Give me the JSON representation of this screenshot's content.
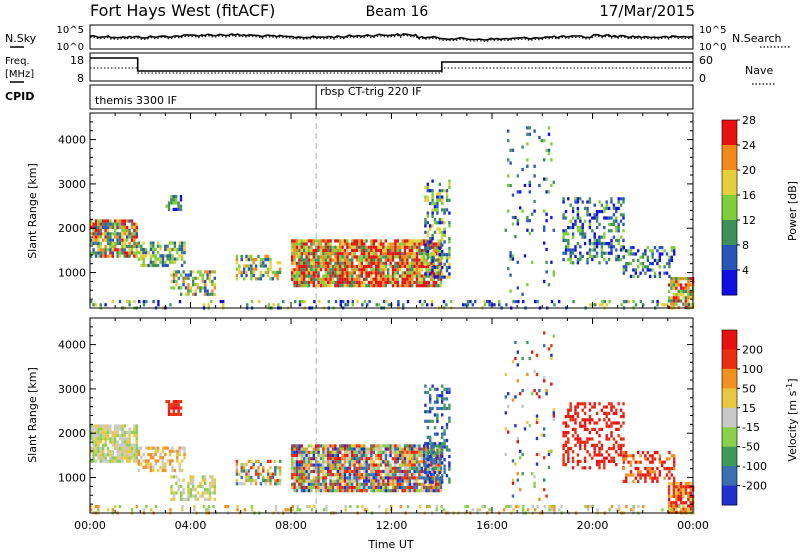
{
  "header": {
    "station": "Fort Hays West (fitACF)",
    "beam": "Beam 16",
    "date": "17/Mar/2015"
  },
  "top_panel": {
    "left_label": "N.Sky",
    "right_label": "N.Search",
    "left_ticks": [
      "10^5",
      "10^0"
    ],
    "right_ticks": [
      "10^5",
      "10^0"
    ]
  },
  "freq_panel": {
    "left_label_1": "Freq.",
    "left_label_2": "[MHz]",
    "left_ticks": [
      "18",
      "8"
    ],
    "right_label": "Nave",
    "right_ticks": [
      "60",
      "0"
    ]
  },
  "cpid_panel": {
    "label": "CPID",
    "programs": [
      {
        "name": "themis 3300 IF",
        "start_hour": 0
      },
      {
        "name": "rbsp CT-trig 220 IF",
        "start_hour": 9
      }
    ]
  },
  "chart_data": [
    {
      "type": "heatmap",
      "name": "power",
      "xlabel": "",
      "ylabel": "Slant Range [km]",
      "xlim": [
        0,
        24
      ],
      "ylim": [
        200,
        4600
      ],
      "yticks": [
        "1000",
        "2000",
        "3000",
        "4000"
      ],
      "colorbar_label": "Power [dB]",
      "colorbar_ticks": [
        "4",
        "8",
        "12",
        "16",
        "20",
        "24",
        "28"
      ],
      "colorbar_colors": [
        "#1010e0",
        "#2a55b8",
        "#3f8f5a",
        "#7fcf3a",
        "#e6d03a",
        "#f28a1a",
        "#e81010"
      ],
      "clusters": [
        {
          "t": [
            0.0,
            1.9
          ],
          "r": [
            1350,
            2200
          ],
          "dens": 0.82,
          "cmin": 1,
          "cmax": 6
        },
        {
          "t": [
            1.9,
            3.8
          ],
          "r": [
            1150,
            1700
          ],
          "dens": 0.55,
          "cmin": 1,
          "cmax": 4
        },
        {
          "t": [
            3.0,
            3.6
          ],
          "r": [
            2450,
            2750
          ],
          "dens": 0.65,
          "cmin": 0,
          "cmax": 3
        },
        {
          "t": [
            3.2,
            5.0
          ],
          "r": [
            520,
            1050
          ],
          "dens": 0.55,
          "cmin": 1,
          "cmax": 5
        },
        {
          "t": [
            5.8,
            7.6
          ],
          "r": [
            850,
            1400
          ],
          "dens": 0.55,
          "cmin": 1,
          "cmax": 5
        },
        {
          "t": [
            8.0,
            14.0
          ],
          "r": [
            700,
            1750
          ],
          "dens": 0.88,
          "cmin": 2,
          "cmax": 7
        },
        {
          "t": [
            13.3,
            14.3
          ],
          "r": [
            900,
            3100
          ],
          "dens": 0.45,
          "cmin": 0,
          "cmax": 4
        },
        {
          "t": [
            18.8,
            21.2
          ],
          "r": [
            1200,
            2700
          ],
          "dens": 0.35,
          "cmin": 0,
          "cmax": 3
        },
        {
          "t": [
            21.2,
            23.3
          ],
          "r": [
            900,
            1600
          ],
          "dens": 0.45,
          "cmin": 0,
          "cmax": 3
        },
        {
          "t": [
            23.0,
            24.0
          ],
          "r": [
            220,
            900
          ],
          "dens": 0.85,
          "cmin": 2,
          "cmax": 7
        },
        {
          "t": [
            16.5,
            18.5
          ],
          "r": [
            500,
            4300
          ],
          "dens": 0.07,
          "cmin": 0,
          "cmax": 3
        },
        {
          "t": [
            0.0,
            24.0
          ],
          "r": [
            200,
            380
          ],
          "dens": 0.22,
          "cmin": 0,
          "cmax": 4
        }
      ]
    },
    {
      "type": "heatmap",
      "name": "velocity",
      "xlabel": "Time UT",
      "ylabel": "Slant Range [km]",
      "xlim": [
        0,
        24
      ],
      "ylim": [
        200,
        4600
      ],
      "xticks": [
        "00:00",
        "04:00",
        "08:00",
        "12:00",
        "16:00",
        "20:00",
        "00:00"
      ],
      "yticks": [
        "1000",
        "2000",
        "3000",
        "4000"
      ],
      "colorbar_label": "Velocity [m s",
      "colorbar_label_sup": "-1",
      "colorbar_ticks": [
        "200",
        "100",
        "50",
        "15",
        "-15",
        "-50",
        "-100",
        "-200"
      ],
      "colorbar_colors": [
        "#2030d0",
        "#3a70b0",
        "#3f9a5a",
        "#8ad04a",
        "#c8c8c8",
        "#e8c840",
        "#f29020",
        "#e83010",
        "#e81010"
      ],
      "clusters": [
        {
          "t": [
            0.0,
            1.9
          ],
          "r": [
            1350,
            2200
          ],
          "dens": 0.82,
          "cmin": 3,
          "cmax": 5
        },
        {
          "t": [
            1.9,
            3.8
          ],
          "r": [
            1150,
            1700
          ],
          "dens": 0.55,
          "cmin": 4,
          "cmax": 6
        },
        {
          "t": [
            3.0,
            3.6
          ],
          "r": [
            2450,
            2750
          ],
          "dens": 0.7,
          "cmin": 7,
          "cmax": 8
        },
        {
          "t": [
            3.2,
            5.0
          ],
          "r": [
            520,
            1050
          ],
          "dens": 0.55,
          "cmin": 3,
          "cmax": 5
        },
        {
          "t": [
            5.8,
            7.6
          ],
          "r": [
            850,
            1400
          ],
          "dens": 0.55,
          "cmin": 1,
          "cmax": 7
        },
        {
          "t": [
            8.0,
            14.0
          ],
          "r": [
            700,
            1750
          ],
          "dens": 0.88,
          "cmin": 0,
          "cmax": 8
        },
        {
          "t": [
            13.3,
            14.3
          ],
          "r": [
            900,
            3100
          ],
          "dens": 0.45,
          "cmin": 0,
          "cmax": 2
        },
        {
          "t": [
            18.8,
            21.2
          ],
          "r": [
            1200,
            2700
          ],
          "dens": 0.35,
          "cmin": 7,
          "cmax": 8
        },
        {
          "t": [
            21.2,
            23.3
          ],
          "r": [
            900,
            1600
          ],
          "dens": 0.45,
          "cmin": 6,
          "cmax": 8
        },
        {
          "t": [
            23.0,
            24.0
          ],
          "r": [
            220,
            900
          ],
          "dens": 0.85,
          "cmin": 5,
          "cmax": 8
        },
        {
          "t": [
            16.5,
            18.5
          ],
          "r": [
            500,
            4300
          ],
          "dens": 0.07,
          "cmin": 0,
          "cmax": 8
        },
        {
          "t": [
            0.0,
            24.0
          ],
          "r": [
            200,
            380
          ],
          "dens": 0.22,
          "cmin": 3,
          "cmax": 6
        }
      ]
    }
  ]
}
